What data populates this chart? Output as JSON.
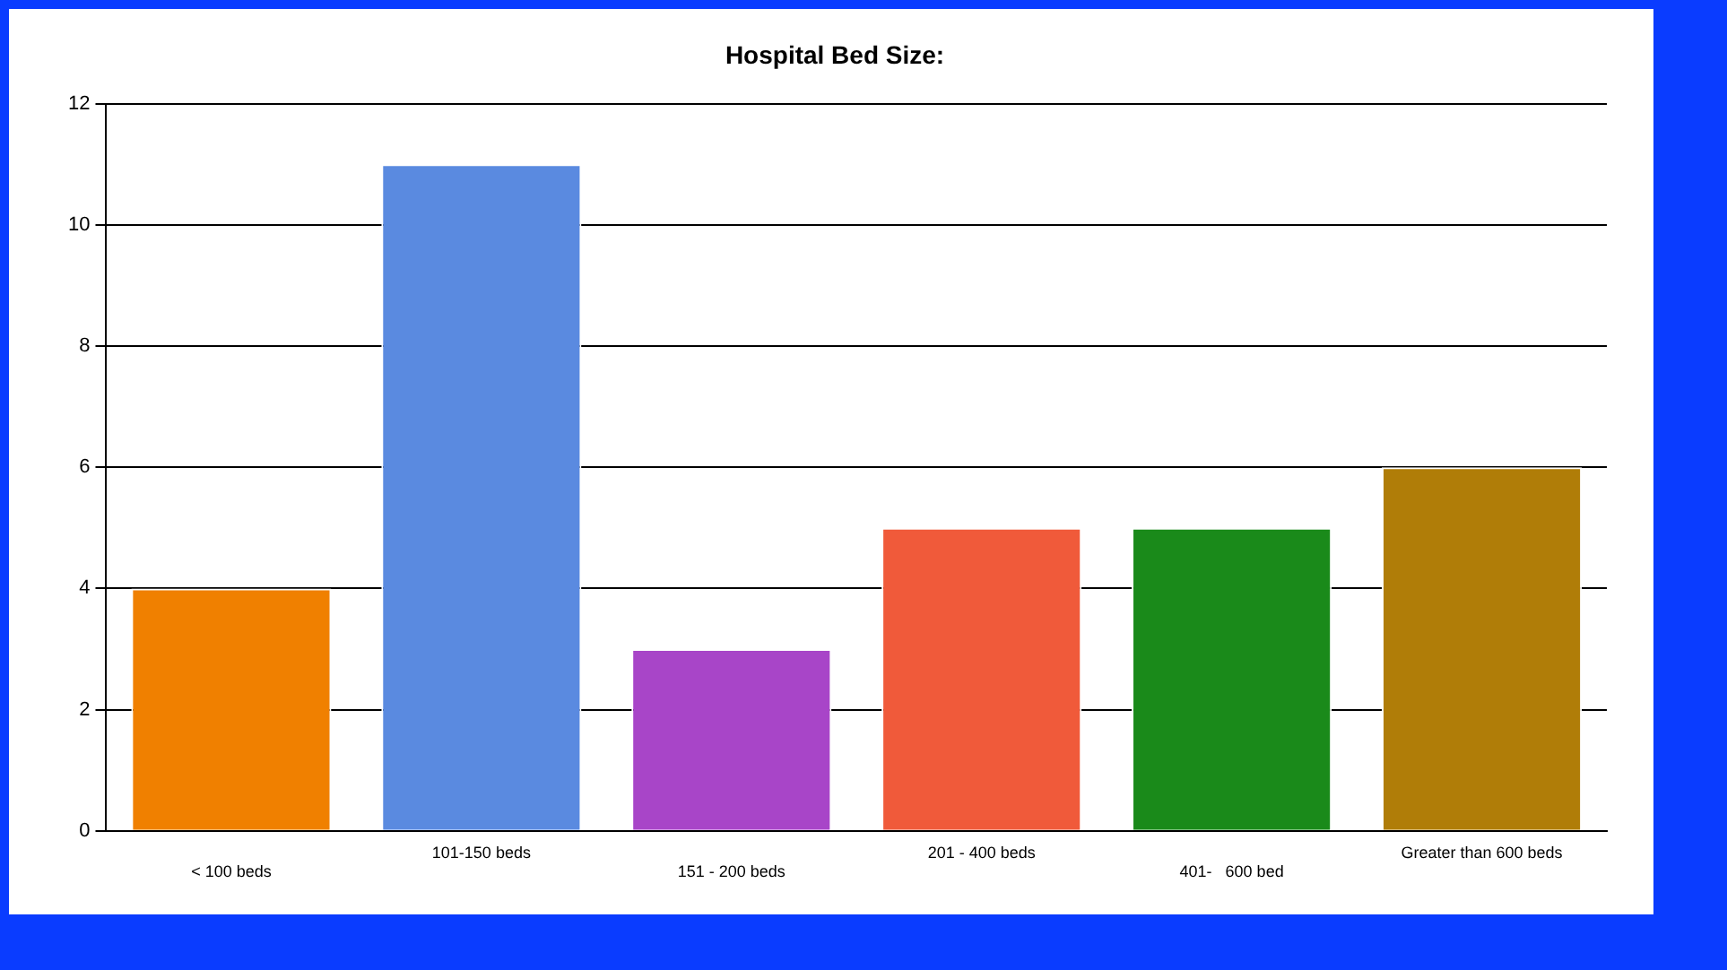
{
  "chart_data": {
    "type": "bar",
    "title": "Hospital Bed Size:",
    "categories": [
      "< 100 beds",
      "101-150 beds",
      "151 - 200 beds",
      "201 - 400 beds",
      "401-   600 bed",
      "Greater than 600 beds"
    ],
    "values": [
      4,
      11,
      3,
      5,
      5,
      6
    ],
    "colors": [
      "#f08000",
      "#5a8ae0",
      "#a845c8",
      "#f05a3a",
      "#1a8a1a",
      "#b07d08"
    ],
    "ylim": [
      0,
      12
    ],
    "yticks": [
      0,
      2,
      4,
      6,
      8,
      10,
      12
    ],
    "grid": "y",
    "legend": false
  }
}
